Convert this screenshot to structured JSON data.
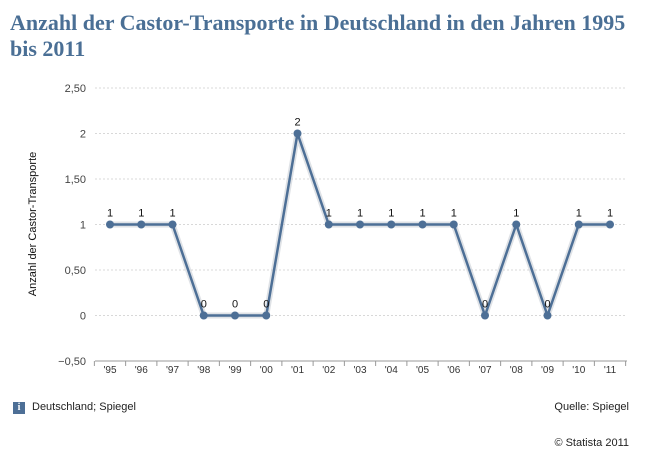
{
  "title": "Anzahl der Castor-Transporte in Deutschland in den Jahren 1995 bis 2011",
  "footer": {
    "info_icon": "i",
    "region": "Deutschland; Spiegel",
    "source": "Quelle: Spiegel",
    "copyright": "© Statista 2011"
  },
  "colors": {
    "title": "#4a6f95",
    "line": "#4d6f96",
    "grid": "#d8d8d8"
  },
  "chart_data": {
    "type": "line",
    "ylabel": "Anzahl der Castor-Transporte",
    "ylim": [
      -0.5,
      2.5
    ],
    "yticks": [
      -0.5,
      0,
      0.5,
      1,
      1.5,
      2,
      2.5
    ],
    "ytick_labels": [
      "−0,50",
      "0",
      "0,50",
      "1",
      "1,50",
      "2",
      "2,50"
    ],
    "categories": [
      "'95",
      "'96",
      "'97",
      "'98",
      "'99",
      "'00",
      "'01",
      "'02",
      "'03",
      "'04",
      "'05",
      "'06",
      "'07",
      "'08",
      "'09",
      "'10",
      "'11"
    ],
    "series": [
      {
        "values": [
          1,
          1,
          1,
          0,
          0,
          0,
          2,
          1,
          1,
          1,
          1,
          1,
          0,
          1,
          0,
          1,
          1
        ]
      }
    ],
    "data_labels": true,
    "grid": true
  }
}
